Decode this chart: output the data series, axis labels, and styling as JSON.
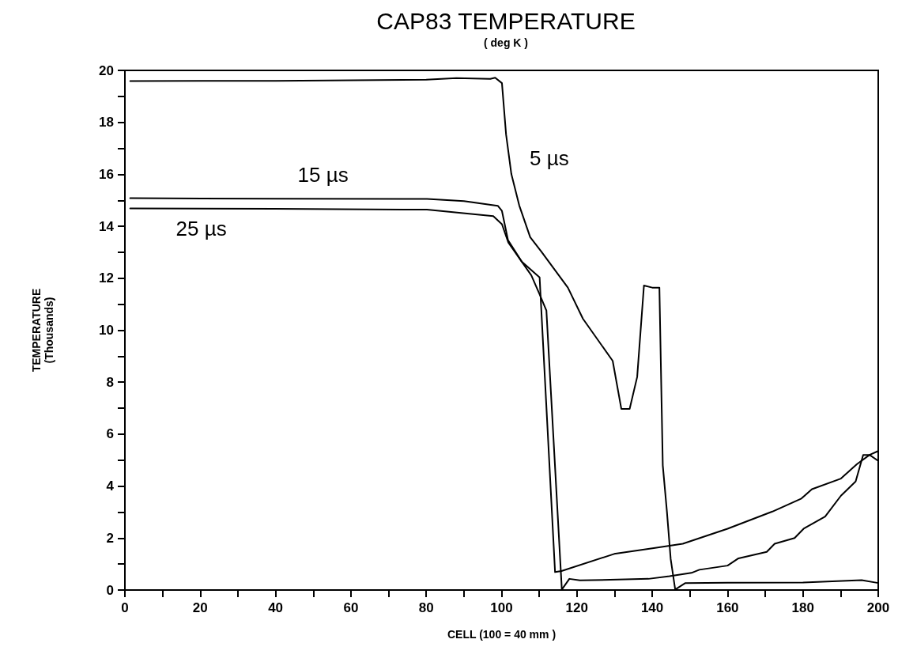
{
  "chart_data": {
    "type": "line",
    "title": "CAP83 TEMPERATURE",
    "subtitle": "( deg K )",
    "xlabel": "CELL (100 = 40 mm )",
    "ylabel": "TEMPERATURE\n(Thousands)",
    "xlim": [
      0,
      200
    ],
    "ylim": [
      0,
      20
    ],
    "xticks": [
      0,
      {
        "value": 10,
        "label": null
      },
      20,
      {
        "value": 30,
        "label": null
      },
      40,
      {
        "value": 50,
        "label": null
      },
      60,
      {
        "value": 70,
        "label": null
      },
      80,
      {
        "value": 90,
        "label": null
      },
      100,
      {
        "value": 110,
        "label": null
      },
      120,
      {
        "value": 130,
        "label": null
      },
      140,
      {
        "value": 150,
        "label": null
      },
      160,
      {
        "value": 170,
        "label": null
      },
      180,
      {
        "value": 190,
        "label": null
      },
      200
    ],
    "yticks": [
      0,
      {
        "value": 1,
        "label": null
      },
      2,
      {
        "value": 3,
        "label": null
      },
      4,
      {
        "value": 5,
        "label": null
      },
      6,
      {
        "value": 7,
        "label": null
      },
      8,
      {
        "value": 9,
        "label": null
      },
      10,
      {
        "value": 11,
        "label": null
      },
      12,
      {
        "value": 13,
        "label": null
      },
      14,
      {
        "value": 15,
        "label": null
      },
      16,
      {
        "value": 17,
        "label": null
      },
      18,
      {
        "value": 19,
        "label": null
      },
      20
    ],
    "grid": false,
    "marker": "none",
    "line_style": "solid",
    "series": [
      {
        "name": "5 µs",
        "color": "#000000",
        "x": [
          1.4,
          40,
          80,
          88,
          97.0,
          98.3,
          100.1,
          101.2,
          102.6,
          104.7,
          107.6,
          110.6,
          117.6,
          121.6,
          129.5,
          131.8,
          134.0,
          136.0,
          137.8,
          140,
          141.9,
          142.8,
          143.9,
          144.9,
          146.1,
          148.8,
          160,
          180,
          195.6,
          200
        ],
        "values": [
          19.59,
          19.6,
          19.64,
          19.7,
          19.67,
          19.72,
          19.51,
          17.53,
          16.01,
          14.8,
          13.58,
          13.02,
          11.64,
          10.44,
          8.82,
          6.97,
          6.97,
          8.2,
          11.72,
          11.64,
          11.64,
          4.8,
          3.02,
          1.19,
          0.02,
          0.27,
          0.28,
          0.29,
          0.38,
          0.27
        ]
      },
      {
        "name": "15 µs",
        "color": "#000000",
        "x": [
          1.4,
          40,
          80.2,
          90,
          99,
          100.1,
          101.7,
          105.4,
          110.1,
          114.2,
          115.9,
          129.9,
          140.4,
          148.1,
          160,
          171.9,
          179.6,
          182.4,
          190.1,
          194.3,
          197.7,
          200
        ],
        "values": [
          15.08,
          15.06,
          15.05,
          14.97,
          14.79,
          14.59,
          13.47,
          12.63,
          12.03,
          0.69,
          0.73,
          1.39,
          1.61,
          1.78,
          2.36,
          3.02,
          3.52,
          3.88,
          4.29,
          4.84,
          5.2,
          5.35
        ]
      },
      {
        "name": "25 µs",
        "color": "#000000",
        "x": [
          1.4,
          40,
          80.2,
          97.8,
          100.1,
          101.8,
          107.9,
          110.1,
          111.9,
          116,
          118.0,
          120.8,
          139,
          144.6,
          150.4,
          152.5,
          160,
          162.9,
          170.4,
          172.5,
          177.8,
          180.2,
          185.9,
          190.1,
          194,
          196,
          197.7,
          200
        ],
        "values": [
          14.69,
          14.67,
          14.64,
          14.39,
          14.08,
          13.37,
          12.11,
          11.38,
          10.76,
          0.02,
          0.43,
          0.37,
          0.43,
          0.53,
          0.66,
          0.78,
          0.94,
          1.22,
          1.47,
          1.78,
          2.0,
          2.36,
          2.83,
          3.63,
          4.18,
          5.2,
          5.2,
          4.97
        ]
      }
    ]
  }
}
